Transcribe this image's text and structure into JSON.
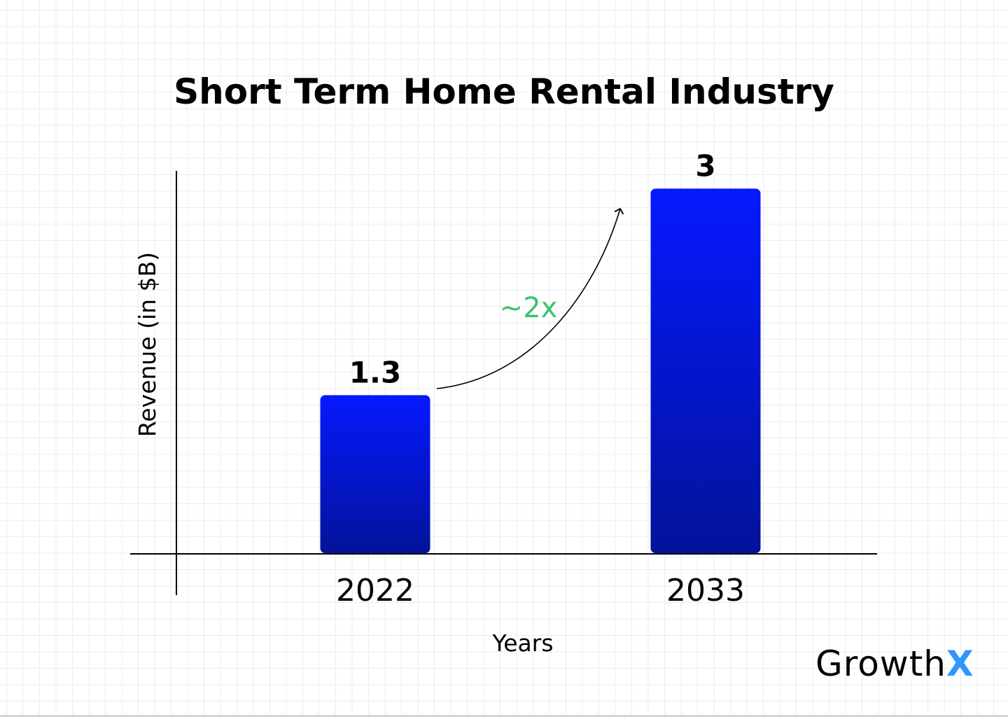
{
  "chart_data": {
    "type": "bar",
    "title": "Short Term Home Rental Industry",
    "xlabel": "Years",
    "ylabel": "Revenue (in $B)",
    "categories": [
      "2022",
      "2033"
    ],
    "values": [
      1.3,
      3
    ],
    "data_labels": [
      "1.3",
      "3"
    ],
    "ylim": [
      0,
      3.4
    ],
    "grid": false,
    "annotation": "~2x",
    "colors": {
      "bar_top": "#0519ff",
      "bar_bottom": "#03139a",
      "annotation": "#3cc36a"
    }
  },
  "logo": {
    "text": "Growth",
    "accent": "X"
  }
}
